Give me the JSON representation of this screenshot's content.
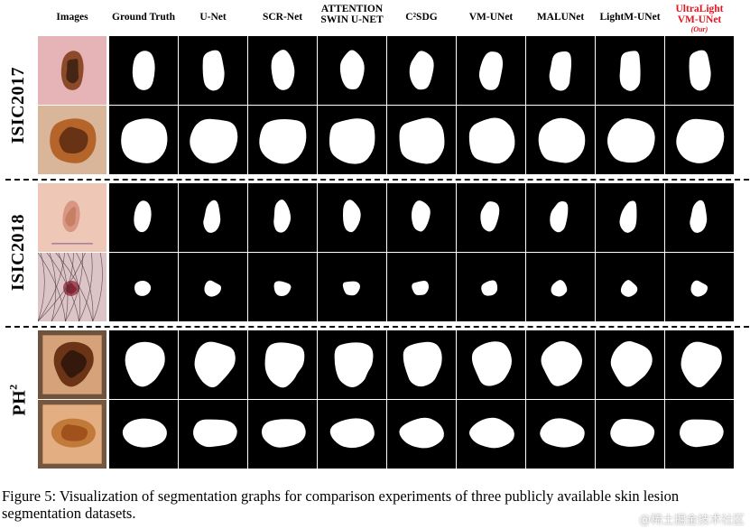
{
  "figure": {
    "columns": [
      {
        "lines": [
          "Images"
        ]
      },
      {
        "lines": [
          "Ground Truth"
        ]
      },
      {
        "lines": [
          "U-Net"
        ]
      },
      {
        "lines": [
          "SCR-Net"
        ]
      },
      {
        "lines": [
          "ATTENTION",
          "SWIN U-NET"
        ]
      },
      {
        "lines": [
          "C²SDG"
        ]
      },
      {
        "lines": [
          "VM-UNet"
        ]
      },
      {
        "lines": [
          "MALUNet"
        ]
      },
      {
        "lines": [
          "LightM-UNet"
        ]
      },
      {
        "lines": [
          "UltraLight",
          "VM-UNet"
        ],
        "note": "(Our)",
        "highlight": true
      }
    ],
    "groups": [
      {
        "label": "ISIC2017"
      },
      {
        "label": "ISIC2018"
      },
      {
        "label": "PH",
        "sup": "2"
      }
    ],
    "colors": {
      "ours": "#e8141b",
      "mask_bg": "#000000",
      "mask_fg": "#ffffff"
    }
  },
  "caption": "Figure 5: Visualization of segmentation graphs for comparison experiments of three publicly available skin lesion segmentation datasets.",
  "watermark": "@稀土掘金技术社区"
}
